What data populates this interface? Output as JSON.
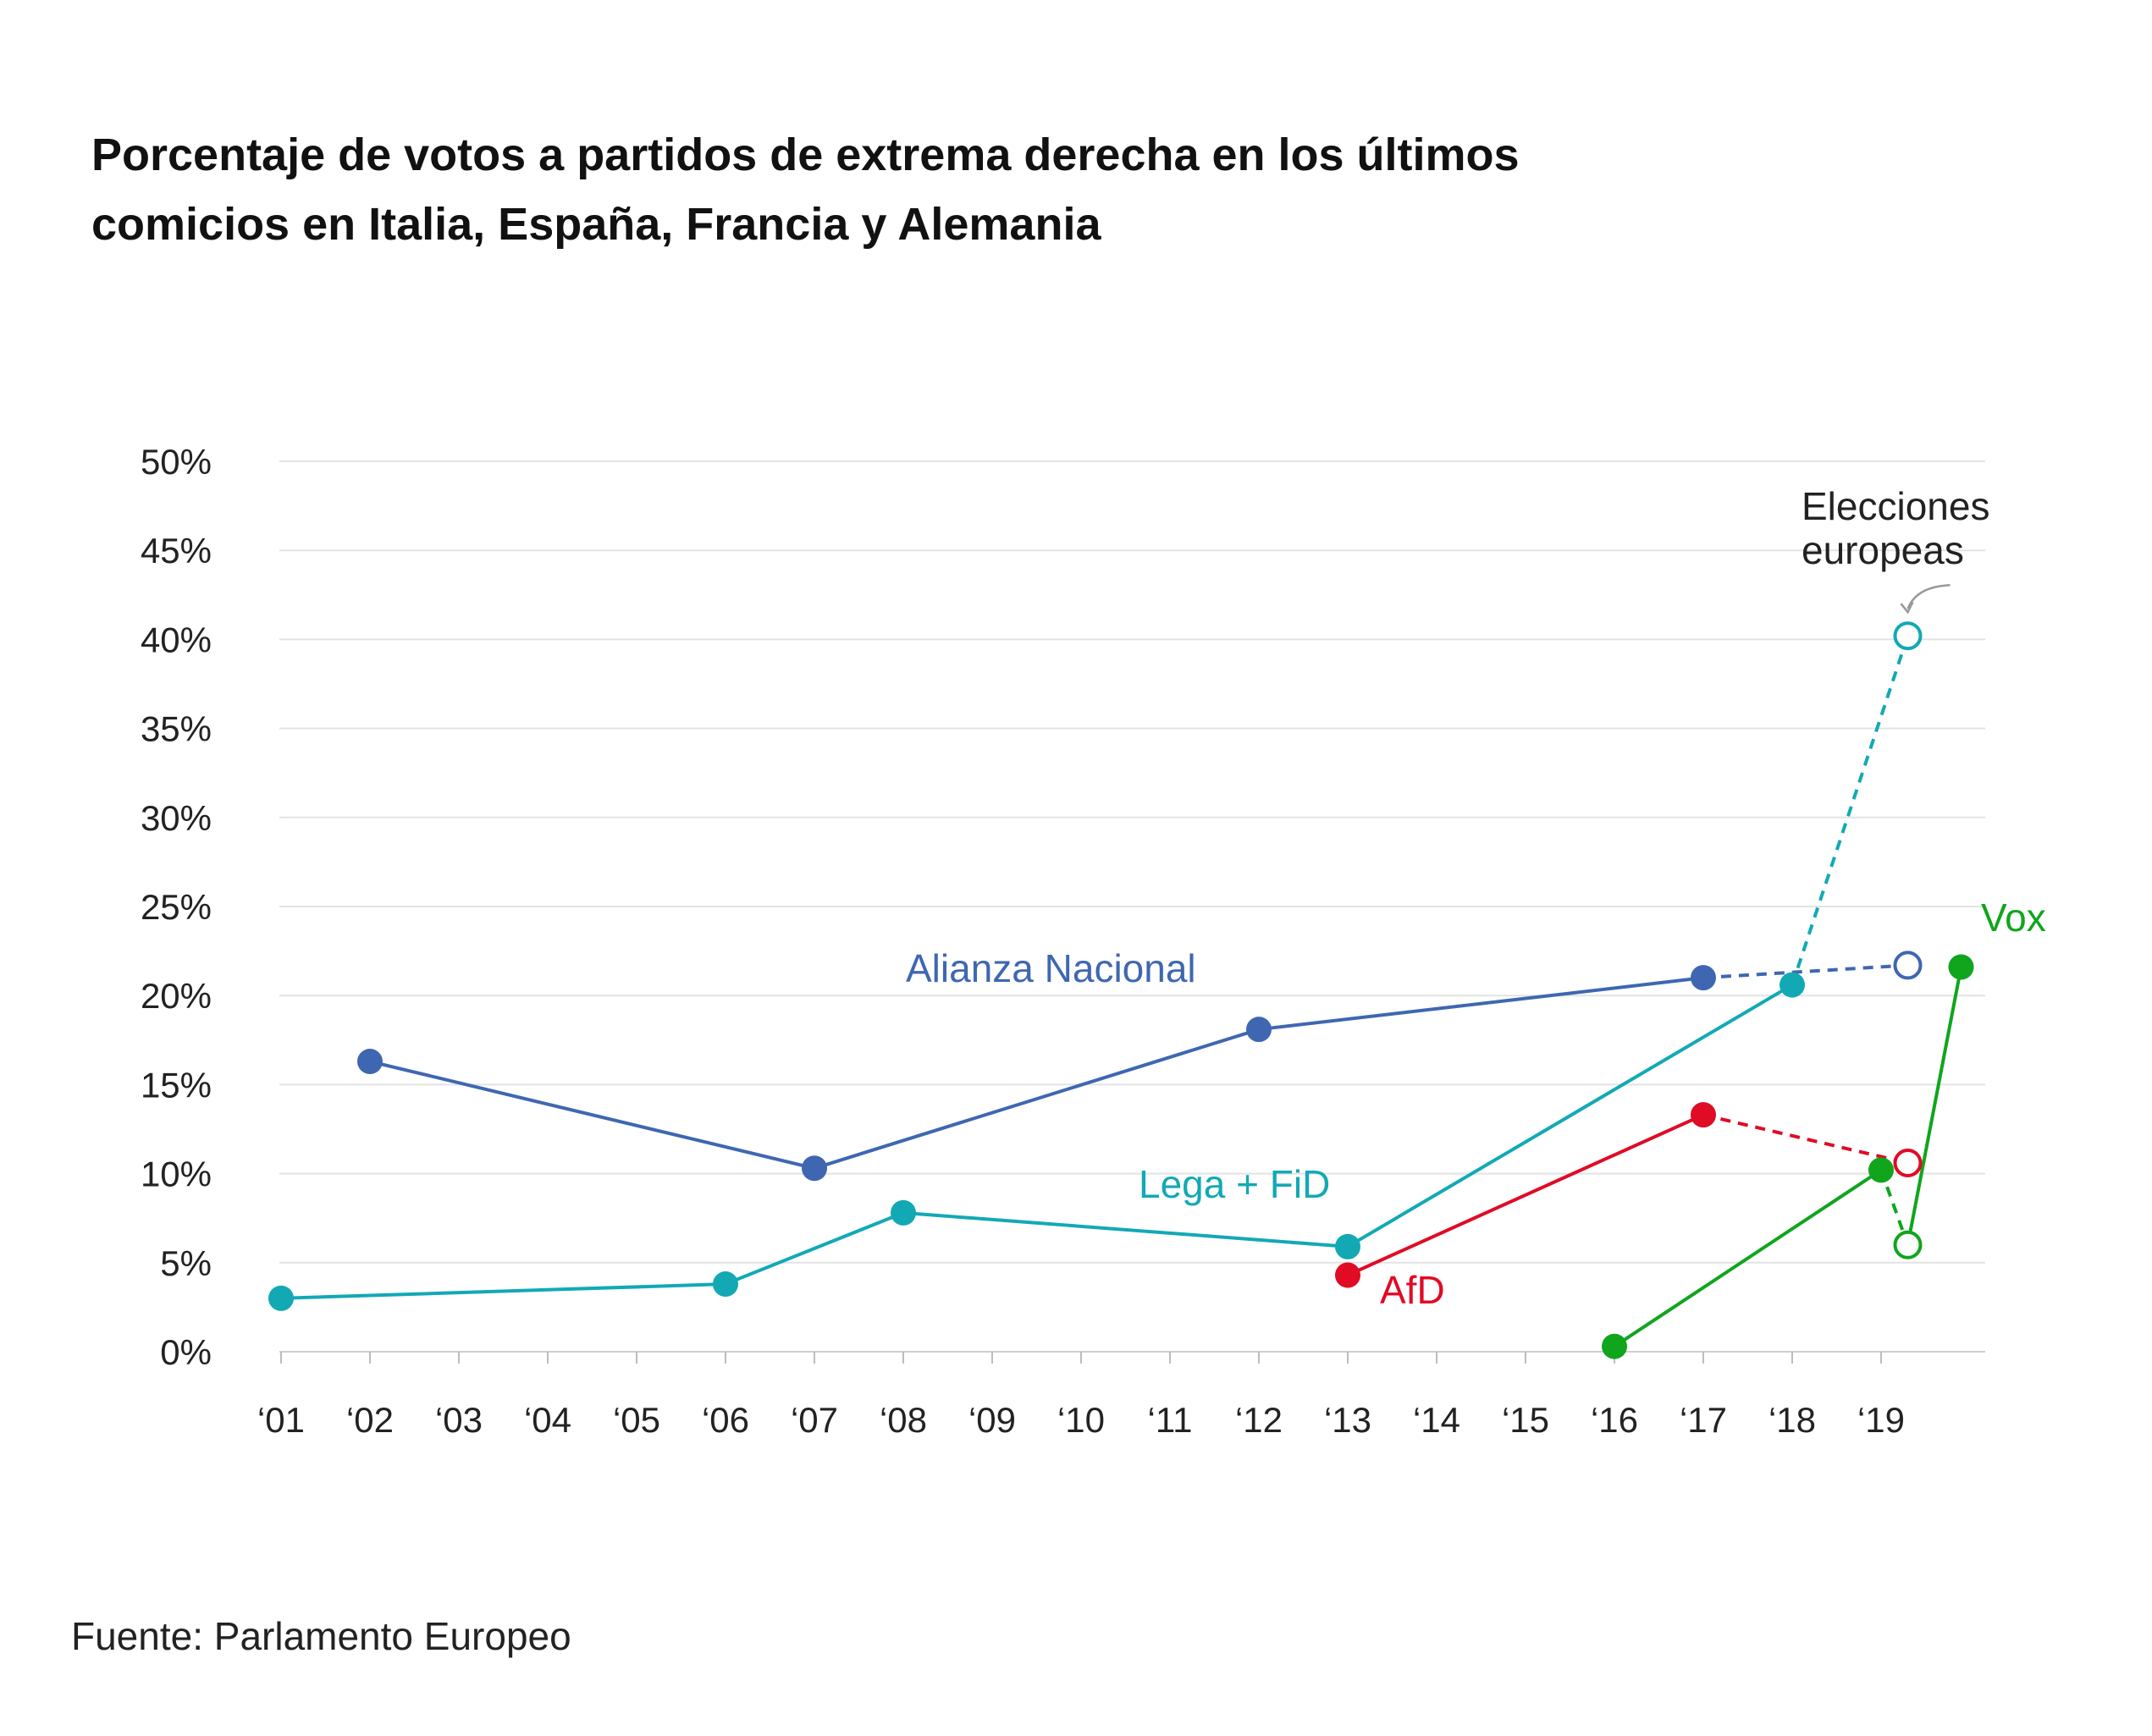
{
  "title": "Porcentaje de votos a partidos de extrema derecha en los últimos comicios en Italia, España, Francia y Alemania",
  "source": "Fuente: Parlamento Europeo",
  "chart_data": {
    "type": "line",
    "title": "Porcentaje de votos a partidos de extrema derecha en los últimos comicios en Italia, España, Francia y Alemania",
    "xlabel": "",
    "ylabel": "",
    "x_ticks": [
      "‘01",
      "‘02",
      "‘03",
      "‘04",
      "‘05",
      "‘06",
      "‘07",
      "‘08",
      "‘09",
      "‘10",
      "‘11",
      "‘12",
      "‘13",
      "‘14",
      "‘15",
      "‘16",
      "‘17",
      "‘18",
      "‘19"
    ],
    "y_ticks": [
      "0%",
      "5%",
      "10%",
      "15%",
      "20%",
      "25%",
      "30%",
      "35%",
      "40%",
      "45%",
      "50%"
    ],
    "xlim": [
      2001,
      2020.1
    ],
    "ylim": [
      0,
      50
    ],
    "grid": true,
    "annotation": {
      "text_line1": "Elecciones",
      "text_line2": "europeas",
      "target_year": 2019.3,
      "target_value": 40.2
    },
    "series": [
      {
        "name": "Alianza Nacional",
        "color": "#3f67b1",
        "points": [
          [
            2002,
            16.3
          ],
          [
            2007,
            10.3
          ],
          [
            2012,
            18.1
          ],
          [
            2017,
            21.0
          ]
        ],
        "european": [
          [
            2019.3,
            21.7
          ]
        ]
      },
      {
        "name": "Lega + FiD",
        "color": "#12a9b5",
        "points": [
          [
            2001,
            3.0
          ],
          [
            2006,
            3.8
          ],
          [
            2008,
            7.8
          ],
          [
            2013,
            5.9
          ],
          [
            2018,
            20.6
          ]
        ],
        "european": [
          [
            2019.3,
            40.2
          ]
        ]
      },
      {
        "name": "AfD",
        "color": "#e00b25",
        "points": [
          [
            2013,
            4.3
          ],
          [
            2017,
            13.3
          ]
        ],
        "european": [
          [
            2019.3,
            10.6
          ]
        ]
      },
      {
        "name": "Vox",
        "color": "#10a51d",
        "points": [
          [
            2016,
            0.3
          ],
          [
            2019,
            10.2
          ]
        ],
        "european": [
          [
            2019.3,
            6.0
          ]
        ],
        "after": [
          [
            2019.9,
            21.6
          ]
        ]
      }
    ]
  }
}
